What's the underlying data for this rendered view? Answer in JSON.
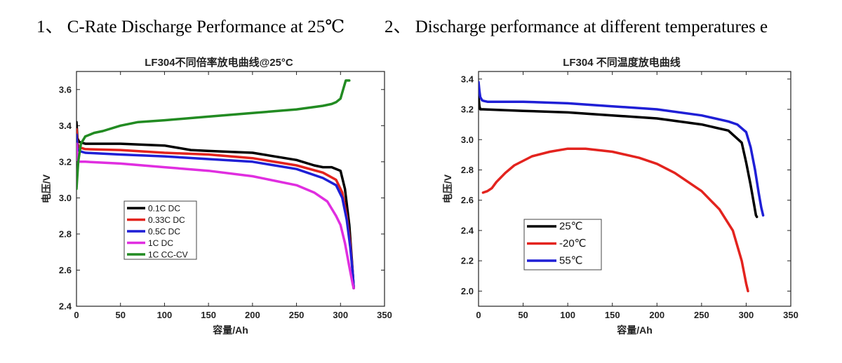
{
  "headings": {
    "left": "1、 C-Rate Discharge Performance at 25℃",
    "right": "2、 Discharge performance at different temperatures e"
  },
  "chart_data": [
    {
      "type": "line",
      "title": "LF304不同倍率放电曲线@25°C",
      "xlabel": "容量/Ah",
      "ylabel": "电压/V",
      "xlim": [
        0,
        350
      ],
      "ylim": [
        2.4,
        3.7
      ],
      "xticks": [
        0,
        50,
        100,
        150,
        200,
        250,
        300,
        350
      ],
      "yticks": [
        2.4,
        2.6,
        2.8,
        3.0,
        3.2,
        3.4,
        3.6
      ],
      "grid": false,
      "legend": "bottom-left",
      "series": [
        {
          "name": "0.1C DC",
          "color": "#000000",
          "x": [
            0,
            1,
            3,
            10,
            50,
            100,
            130,
            150,
            200,
            250,
            270,
            280,
            290,
            300,
            305,
            310,
            313,
            315
          ],
          "y": [
            3.42,
            3.33,
            3.31,
            3.3,
            3.3,
            3.29,
            3.265,
            3.26,
            3.25,
            3.21,
            3.18,
            3.17,
            3.17,
            3.15,
            3.05,
            2.85,
            2.65,
            2.5
          ]
        },
        {
          "name": "0.33C DC",
          "color": "#e3231e",
          "x": [
            0,
            1,
            3,
            10,
            50,
            100,
            150,
            200,
            250,
            280,
            295,
            302,
            307,
            311,
            314,
            315
          ],
          "y": [
            3.38,
            3.3,
            3.28,
            3.27,
            3.265,
            3.25,
            3.24,
            3.22,
            3.18,
            3.14,
            3.1,
            3.03,
            2.9,
            2.75,
            2.58,
            2.5
          ]
        },
        {
          "name": "0.5C DC",
          "color": "#1f1fd6",
          "x": [
            0,
            1,
            3,
            10,
            50,
            100,
            150,
            200,
            250,
            280,
            295,
            302,
            307,
            311,
            314,
            315
          ],
          "y": [
            3.35,
            3.27,
            3.26,
            3.25,
            3.24,
            3.23,
            3.215,
            3.2,
            3.16,
            3.11,
            3.07,
            3.0,
            2.88,
            2.73,
            2.58,
            2.5
          ]
        },
        {
          "name": "1C DC",
          "color": "#e02ee0",
          "x": [
            0,
            1,
            3,
            10,
            50,
            100,
            150,
            200,
            250,
            270,
            285,
            295,
            300,
            305,
            310,
            314,
            315
          ],
          "y": [
            3.3,
            3.21,
            3.2,
            3.2,
            3.19,
            3.17,
            3.15,
            3.12,
            3.07,
            3.03,
            2.98,
            2.9,
            2.85,
            2.75,
            2.62,
            2.52,
            2.5
          ]
        },
        {
          "name": "1C CC-CV",
          "color": "#228b22",
          "x": [
            0,
            2,
            5,
            10,
            15,
            20,
            30,
            50,
            70,
            100,
            150,
            200,
            250,
            280,
            290,
            295,
            300,
            303,
            306,
            310
          ],
          "y": [
            3.05,
            3.2,
            3.3,
            3.34,
            3.35,
            3.36,
            3.37,
            3.4,
            3.42,
            3.43,
            3.45,
            3.47,
            3.49,
            3.51,
            3.52,
            3.53,
            3.55,
            3.6,
            3.65,
            3.65
          ]
        }
      ]
    },
    {
      "type": "line",
      "title": "LF304 不同温度放电曲线",
      "xlabel": "容量/Ah",
      "ylabel": "电压/V",
      "xlim": [
        0,
        350
      ],
      "ylim": [
        1.9,
        3.45
      ],
      "xticks": [
        0,
        50,
        100,
        150,
        200,
        250,
        300,
        350
      ],
      "yticks": [
        2.0,
        2.2,
        2.4,
        2.6,
        2.8,
        3.0,
        3.2,
        3.4
      ],
      "grid": false,
      "legend": "bottom-left",
      "series": [
        {
          "name": "25℃",
          "color": "#000000",
          "x": [
            0,
            1,
            2,
            5,
            50,
            100,
            150,
            200,
            250,
            280,
            295,
            300,
            305,
            308,
            311,
            312
          ],
          "y": [
            3.28,
            3.22,
            3.2,
            3.2,
            3.19,
            3.18,
            3.16,
            3.14,
            3.1,
            3.06,
            2.98,
            2.85,
            2.7,
            2.6,
            2.5,
            2.49
          ]
        },
        {
          "name": "-20℃",
          "color": "#e3231e",
          "x": [
            5,
            10,
            15,
            20,
            30,
            40,
            50,
            60,
            80,
            100,
            120,
            150,
            180,
            200,
            220,
            250,
            270,
            285,
            295,
            300,
            302
          ],
          "y": [
            2.65,
            2.66,
            2.68,
            2.72,
            2.78,
            2.83,
            2.86,
            2.89,
            2.92,
            2.94,
            2.94,
            2.92,
            2.88,
            2.84,
            2.78,
            2.66,
            2.54,
            2.4,
            2.2,
            2.05,
            2.0
          ]
        },
        {
          "name": "55℃",
          "color": "#1f1fd6",
          "x": [
            0,
            1,
            2,
            4,
            6,
            10,
            50,
            100,
            150,
            200,
            250,
            280,
            290,
            300,
            305,
            310,
            314,
            317,
            319
          ],
          "y": [
            3.38,
            3.32,
            3.28,
            3.26,
            3.255,
            3.25,
            3.25,
            3.24,
            3.22,
            3.2,
            3.16,
            3.12,
            3.1,
            3.05,
            2.95,
            2.8,
            2.65,
            2.55,
            2.5
          ]
        }
      ]
    }
  ]
}
